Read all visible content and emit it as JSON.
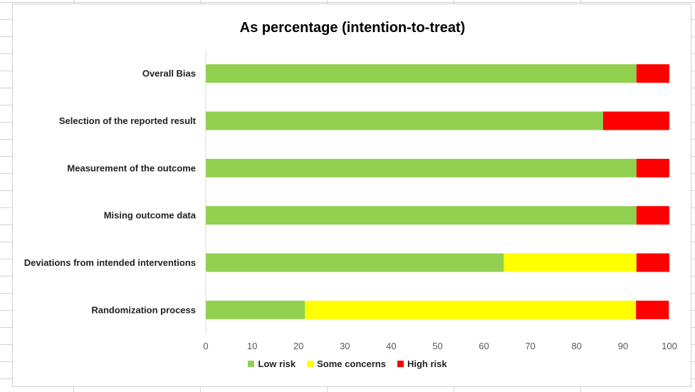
{
  "chart_data": {
    "type": "bar",
    "orientation": "horizontal",
    "stacked": true,
    "title": "As percentage (intention-to-treat)",
    "xlabel": "",
    "ylabel": "",
    "xlim": [
      0,
      100
    ],
    "x_ticks": [
      0,
      10,
      20,
      30,
      40,
      50,
      60,
      70,
      80,
      90,
      100
    ],
    "categories": [
      "Overall Bias",
      "Selection of the reported result",
      "Measurement of the outcome",
      "Mising outcome data",
      "Deviations from intended interventions",
      "Randomization process"
    ],
    "series": [
      {
        "name": "Low risk",
        "color": "#92d050",
        "values": [
          92.9,
          85.7,
          92.9,
          92.9,
          64.3,
          21.4
        ]
      },
      {
        "name": "Some concerns",
        "color": "#ffff00",
        "values": [
          0,
          0,
          0,
          0,
          28.6,
          71.4
        ]
      },
      {
        "name": "High risk",
        "color": "#ff0000",
        "values": [
          7.1,
          14.3,
          7.1,
          7.1,
          7.1,
          7.1
        ]
      }
    ],
    "gridlines": false,
    "legend_position": "bottom"
  }
}
